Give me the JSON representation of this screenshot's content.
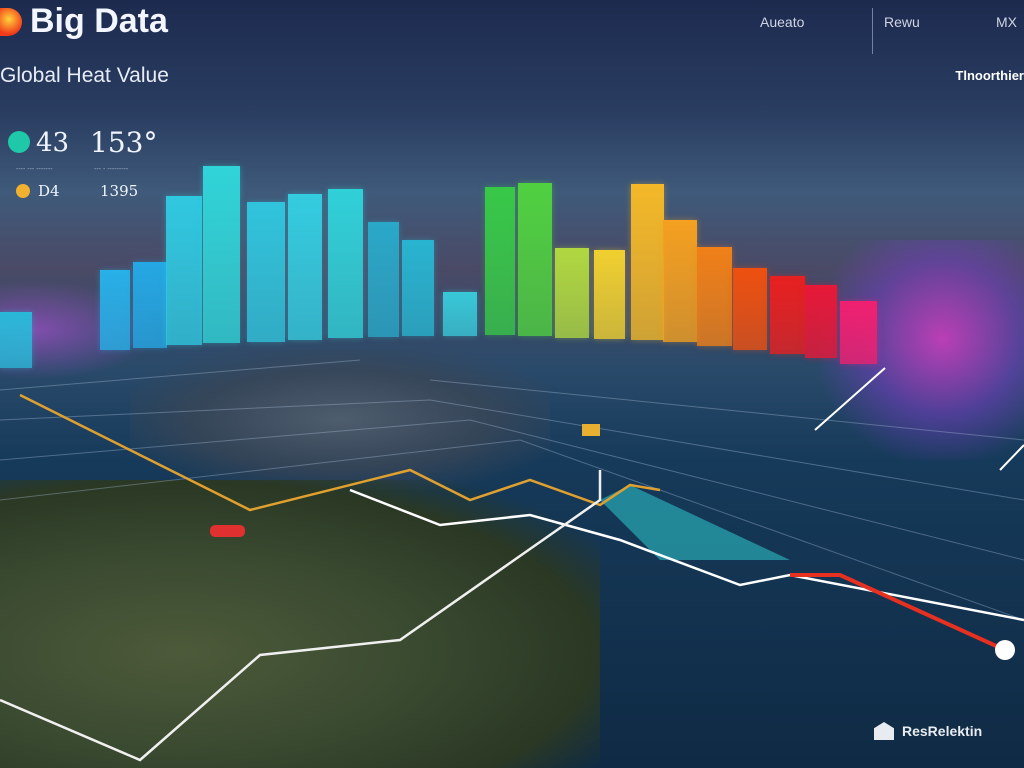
{
  "header": {
    "title": "Big Data",
    "subtitle": "Global Heat Value",
    "nav": [
      "Aueato",
      "Rewu",
      "MX"
    ],
    "right_label": "Tlnoorthier"
  },
  "stats": [
    {
      "value": "43",
      "caption": "---- --- -------",
      "color": "#1ec8a8"
    },
    {
      "value": "153°",
      "caption": "--- - ---------"
    },
    {
      "value": "D4",
      "color": "#f0b030"
    },
    {
      "value": "1395"
    }
  ],
  "bars": {
    "values": [
      28,
      70,
      78,
      144,
      174,
      138,
      146,
      151,
      118,
      100,
      48,
      153,
      157,
      92,
      90,
      156,
      120,
      93,
      72,
      64,
      55,
      39
    ],
    "colors": [
      "#2ab8d8",
      "#28b0e8",
      "#24a8e4",
      "#30c8e0",
      "#30d4d8",
      "#30c4dc",
      "#34cce0",
      "#30d0d8",
      "#2aa8c8",
      "#28b4d0",
      "#38c8d8",
      "#38c848",
      "#50d040",
      "#b0d840",
      "#f0d030",
      "#f4b828",
      "#f4a020",
      "#f08018",
      "#ee5010",
      "#e82020",
      "#e81838",
      "#f02070"
    ]
  },
  "footer": {
    "label": "ResRelektin"
  }
}
